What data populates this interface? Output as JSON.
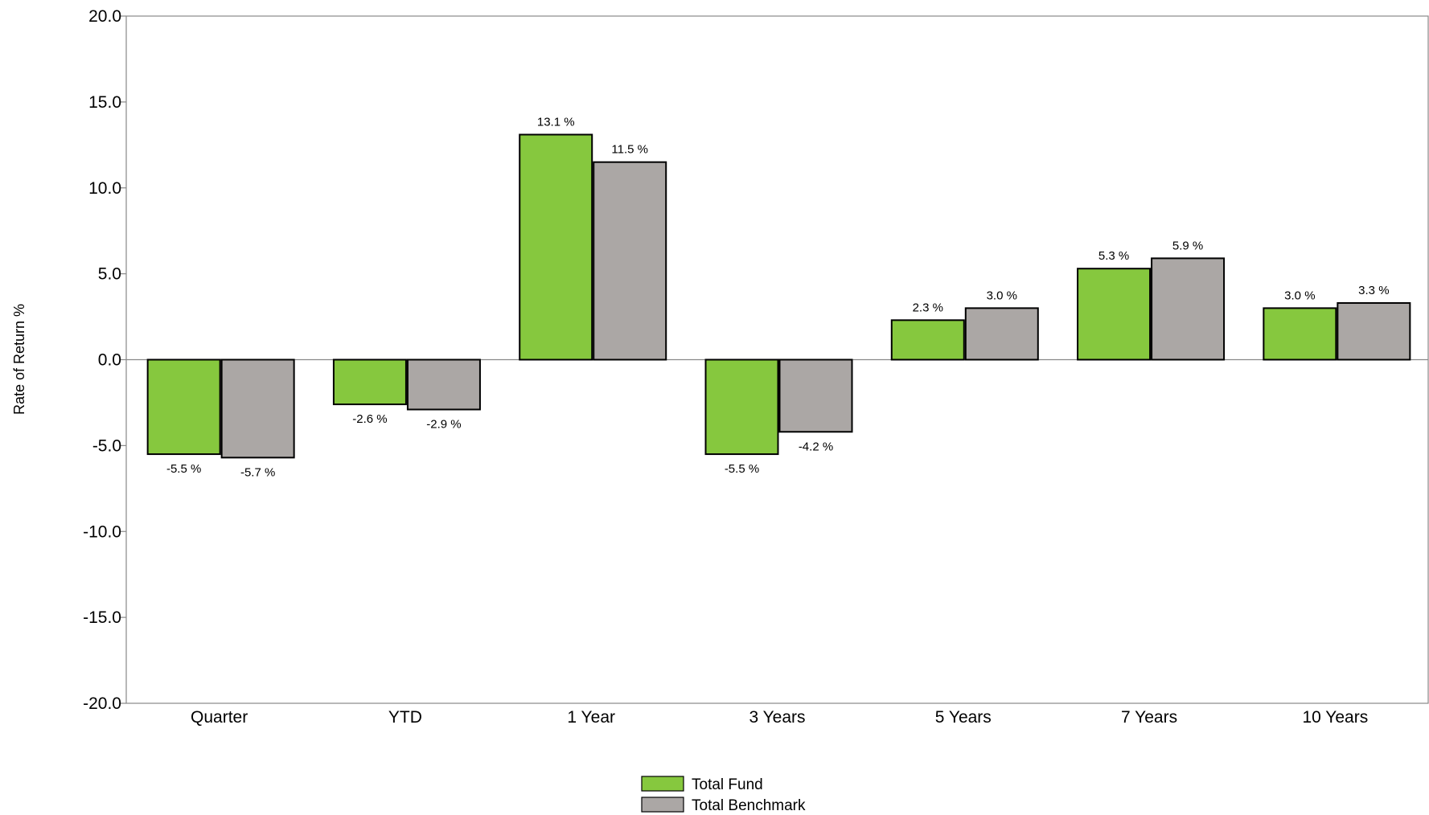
{
  "chart_data": {
    "type": "bar",
    "ylabel": "Rate of Return %",
    "ylim": [
      -20,
      20
    ],
    "yticks": [
      20,
      15,
      10,
      5,
      0,
      -5,
      -10,
      -15,
      -20
    ],
    "ytick_labels": [
      "20.0",
      "15.0",
      "10.0",
      "5.0",
      "0.0",
      "-5.0",
      "-10.0",
      "-15.0",
      "-20.0"
    ],
    "categories": [
      "Quarter",
      "YTD",
      "1 Year",
      "3 Years",
      "5 Years",
      "7 Years",
      "10 Years"
    ],
    "series": [
      {
        "name": "Total Fund",
        "color": "#86c83e",
        "values": [
          -5.5,
          -2.6,
          13.1,
          -5.5,
          2.3,
          5.3,
          3.0
        ],
        "labels": [
          "-5.5 %",
          "-2.6 %",
          "13.1 %",
          "-5.5 %",
          "2.3 %",
          "5.3 %",
          "3.0 %"
        ]
      },
      {
        "name": "Total Benchmark",
        "color": "#aba7a5",
        "values": [
          -5.7,
          -2.9,
          11.5,
          -4.2,
          3.0,
          5.9,
          3.3
        ],
        "labels": [
          "-5.7 %",
          "-2.9 %",
          "11.5 %",
          "-4.2 %",
          "3.0 %",
          "5.9 %",
          "3.3 %"
        ]
      }
    ],
    "legend_position": "bottom-center",
    "grid": false
  }
}
